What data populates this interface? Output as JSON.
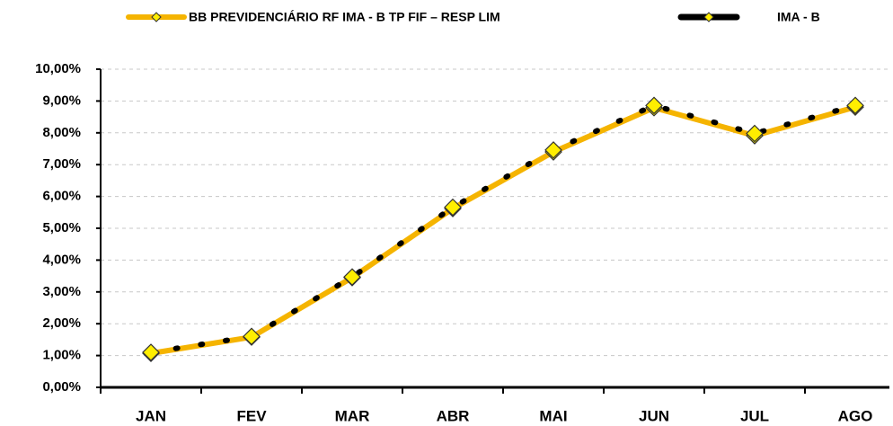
{
  "chart_data": {
    "type": "line",
    "categories": [
      "JAN",
      "FEV",
      "MAR",
      "ABR",
      "MAI",
      "JUN",
      "JUL",
      "AGO"
    ],
    "series": [
      {
        "name": "BB PREVIDENCIÁRIO RF IMA - B TP FIF – RESP LIM",
        "color": "#f5b400",
        "values": [
          1.07,
          1.58,
          3.45,
          5.62,
          7.4,
          8.79,
          7.91,
          8.81
        ]
      },
      {
        "name": "IMA - B",
        "color": "#000000",
        "values": [
          1.1,
          1.6,
          3.47,
          5.66,
          7.46,
          8.86,
          7.98,
          8.86
        ]
      }
    ],
    "ylim": [
      0,
      10
    ],
    "yticks": [
      {
        "value": 0,
        "label": "0,00%"
      },
      {
        "value": 1,
        "label": "1,00%"
      },
      {
        "value": 2,
        "label": "2,00%"
      },
      {
        "value": 3,
        "label": "3,00%"
      },
      {
        "value": 4,
        "label": "4,00%"
      },
      {
        "value": 5,
        "label": "5,00%"
      },
      {
        "value": 6,
        "label": "6,00%"
      },
      {
        "value": 7,
        "label": "7,00%"
      },
      {
        "value": 8,
        "label": "8,00%"
      },
      {
        "value": 9,
        "label": "9,00%"
      },
      {
        "value": 10,
        "label": "10,00%"
      }
    ],
    "grid": true,
    "legend": "top"
  }
}
